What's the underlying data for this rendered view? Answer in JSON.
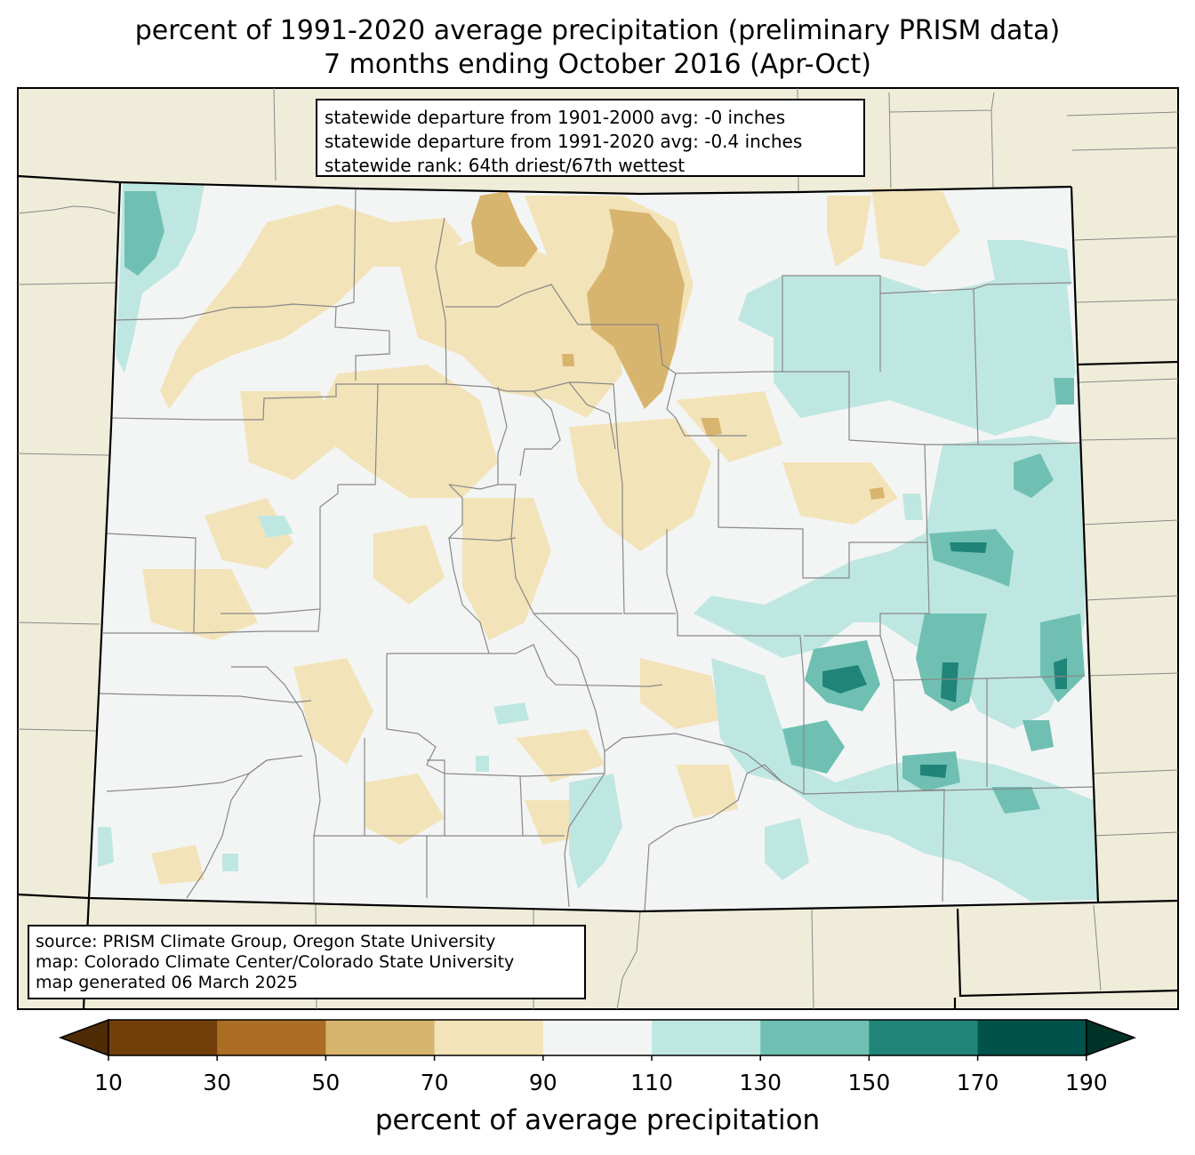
{
  "title": {
    "line1": "percent of 1991-2020 average precipitation (preliminary PRISM data)",
    "line2": "7 months ending October 2016 (Apr-Oct)"
  },
  "stats_box": {
    "line1": "statewide departure from 1901-2000 avg: -0 inches",
    "line2": "statewide departure from 1991-2020 avg: -0.4 inches",
    "line3": "statewide rank: 64th driest/67th wettest"
  },
  "source_box": {
    "line1": "source: PRISM Climate Group, Oregon State University",
    "line2": "map: Colorado Climate Center/Colorado State University",
    "line3": "map generated 06 March 2025"
  },
  "colorbar": {
    "label": "percent of average precipitation",
    "ticks": [
      "10",
      "30",
      "50",
      "70",
      "90",
      "110",
      "130",
      "150",
      "170",
      "190"
    ],
    "bins": [
      {
        "range": [
          10,
          30
        ],
        "color": "#723f0a"
      },
      {
        "range": [
          30,
          50
        ],
        "color": "#ab6e24"
      },
      {
        "range": [
          50,
          70
        ],
        "color": "#d8b56e"
      },
      {
        "range": [
          70,
          90
        ],
        "color": "#f3e3b9"
      },
      {
        "range": [
          90,
          110
        ],
        "color": "#f3f5f4"
      },
      {
        "range": [
          110,
          130
        ],
        "color": "#bfe7e1"
      },
      {
        "range": [
          130,
          150
        ],
        "color": "#6fc0b2"
      },
      {
        "range": [
          150,
          170
        ],
        "color": "#208479"
      },
      {
        "range": [
          170,
          190
        ],
        "color": "#00534a"
      }
    ],
    "extend_low_color": "#4f2b06",
    "extend_high_color": "#003328"
  },
  "colors": {
    "land_background": "#efedda",
    "county_lines": "#888888",
    "state_lines": "#000000"
  }
}
